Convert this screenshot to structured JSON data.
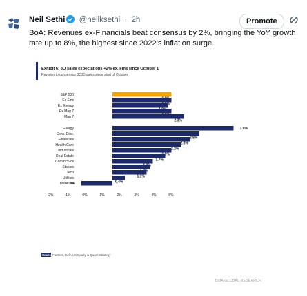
{
  "author": {
    "name": "Neil Sethi",
    "handle": "@neilksethi",
    "time": "2h"
  },
  "header": {
    "separator": "·",
    "promote_label": "Promote"
  },
  "tweet": {
    "text": "BoA: Revenues ex-Financials beat consensus by 2%, bringing the YoY growth rate up to 8%, the highest since 2022's inflation surge."
  },
  "colors": {
    "accent": "#1d9bf0",
    "bar_navy": "#1c2a6b",
    "bar_highlight": "#f0a500",
    "title_bar": "#1c2a6b"
  },
  "icons": {
    "avatar": "logo-avatar-icon",
    "verified": "verified-badge-icon",
    "more": "grok-icon"
  },
  "chart_data": {
    "type": "bar",
    "orientation": "horizontal",
    "title": "Exhibit 6: 3Q sales expectations +2% ex. Fins since October 1",
    "subtitle": "Revision to consensus 3Q25 sales since start of October",
    "categories": [
      "S&P 500",
      "Ex Fins",
      "Ex Energy",
      "Ex Mag 7",
      "Mag 7",
      "Energy",
      "Cons. Disc.",
      "Financials",
      "Health Care",
      "Industrials",
      "Real Estate",
      "Comm Svcs",
      "Staples",
      "Tech",
      "Utilities",
      "Materials"
    ],
    "values": [
      1.9,
      1.9,
      1.8,
      1.9,
      2.3,
      3.9,
      2.8,
      2.5,
      2.2,
      1.9,
      1.7,
      1.3,
      1.2,
      1.1,
      0.4,
      -1.0
    ],
    "value_labels": [
      "1.9%",
      "1.9%",
      "1.8%",
      "1.9%",
      "2.3%",
      "3.9%",
      "2.8%",
      "2.5%",
      "2.2%",
      "1.9%",
      "1.7%",
      "1.3%",
      "1.2%",
      "1.1%",
      "0.4%",
      "-1.0%"
    ],
    "highlight_index": 0,
    "x_ticks": [
      "-2%",
      "-1%",
      "0%",
      "1%",
      "2%",
      "3%",
      "4%",
      "5%"
    ],
    "xlim": [
      -2,
      5
    ],
    "grid": false,
    "source_label": "Source:",
    "source_text": "FactSet, BofA US Equity & Quant Strategy",
    "watermark": "BofA GLOBAL RESEARCH"
  }
}
